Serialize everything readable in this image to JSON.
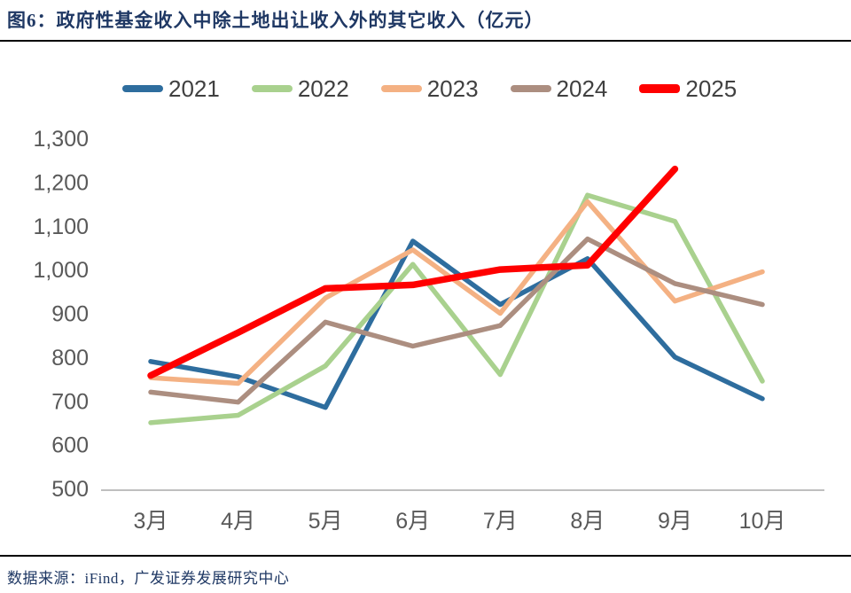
{
  "page": {
    "title": "图6：政府性基金收入中除土地出让收入外的其它收入（亿元）",
    "source": "数据来源：iFind，广发证券发展研究中心"
  },
  "colors": {
    "title_text": "#1F3864",
    "source_text": "#1F3864",
    "divider": "#000000",
    "axis_line": "#BFBFBF",
    "axis_text": "#595959",
    "legend_text": "#404040",
    "background": "#FFFFFF"
  },
  "chart_data": {
    "type": "line",
    "title": "政府性基金收入中除土地出让收入外的其它收入（亿元）",
    "categories": [
      "3月",
      "4月",
      "5月",
      "6月",
      "7月",
      "8月",
      "9月",
      "10月"
    ],
    "series": [
      {
        "name": "2021",
        "color": "#2E6D9E",
        "line_width": 5.5,
        "values": [
          790,
          755,
          685,
          1065,
          920,
          1025,
          800,
          705
        ]
      },
      {
        "name": "2022",
        "color": "#A9D18E",
        "line_width": 5.5,
        "values": [
          650,
          667,
          780,
          1012,
          760,
          1170,
          1110,
          745
        ]
      },
      {
        "name": "2023",
        "color": "#F4B183",
        "line_width": 5.5,
        "values": [
          753,
          740,
          935,
          1045,
          900,
          1155,
          928,
          995
        ]
      },
      {
        "name": "2024",
        "color": "#AC8E80",
        "line_width": 5.5,
        "values": [
          720,
          697,
          880,
          825,
          872,
          1070,
          968,
          920
        ]
      },
      {
        "name": "2025",
        "color": "#FF0000",
        "line_width": 7.5,
        "values": [
          758,
          856,
          957,
          965,
          1000,
          1010,
          1230,
          null
        ]
      }
    ],
    "ylim": [
      500,
      1300
    ],
    "ytick_interval": 100,
    "ytick_labels": [
      "500",
      "600",
      "700",
      "800",
      "900",
      "1,000",
      "1,100",
      "1,200",
      "1,300"
    ],
    "xlabel": "",
    "ylabel": "",
    "grid": false,
    "legend_position": "top"
  }
}
